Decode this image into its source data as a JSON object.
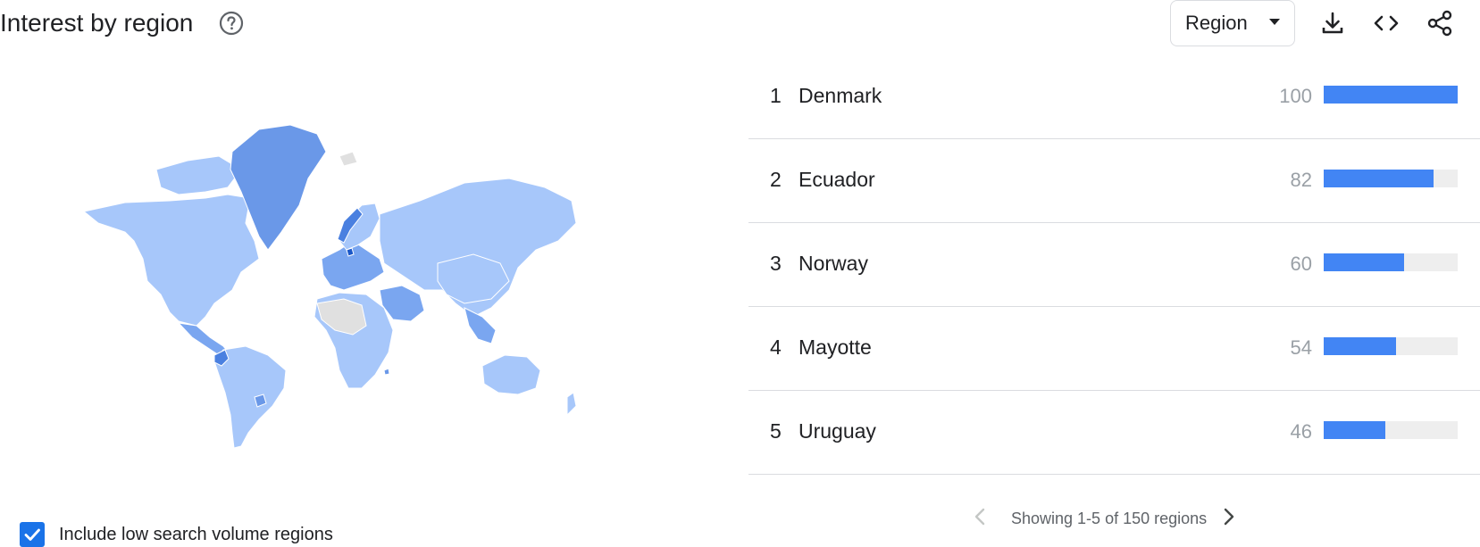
{
  "header": {
    "title": "Interest by region"
  },
  "toolbar": {
    "region_select_value": "Region",
    "icons": [
      "help-icon",
      "download-icon",
      "embed-code-icon",
      "share-icon"
    ]
  },
  "map": {
    "colors": {
      "high": "#4a80e0",
      "medium": "#7aa6f0",
      "low": "#a7c7fa",
      "no_data": "#e0e0e0"
    }
  },
  "options": {
    "include_low_volume_label": "Include low search volume regions",
    "include_low_volume_checked": true
  },
  "regions": [
    {
      "rank": "1",
      "name": "Denmark",
      "value": 100
    },
    {
      "rank": "2",
      "name": "Ecuador",
      "value": 82
    },
    {
      "rank": "3",
      "name": "Norway",
      "value": 60
    },
    {
      "rank": "4",
      "name": "Mayotte",
      "value": 54
    },
    {
      "rank": "5",
      "name": "Uruguay",
      "value": 46
    }
  ],
  "pagination": {
    "label": "Showing 1-5 of 150 regions"
  },
  "colors": {
    "bar_fill": "#4285f4",
    "bar_track": "#eeeeee",
    "accent": "#1a73e8"
  }
}
